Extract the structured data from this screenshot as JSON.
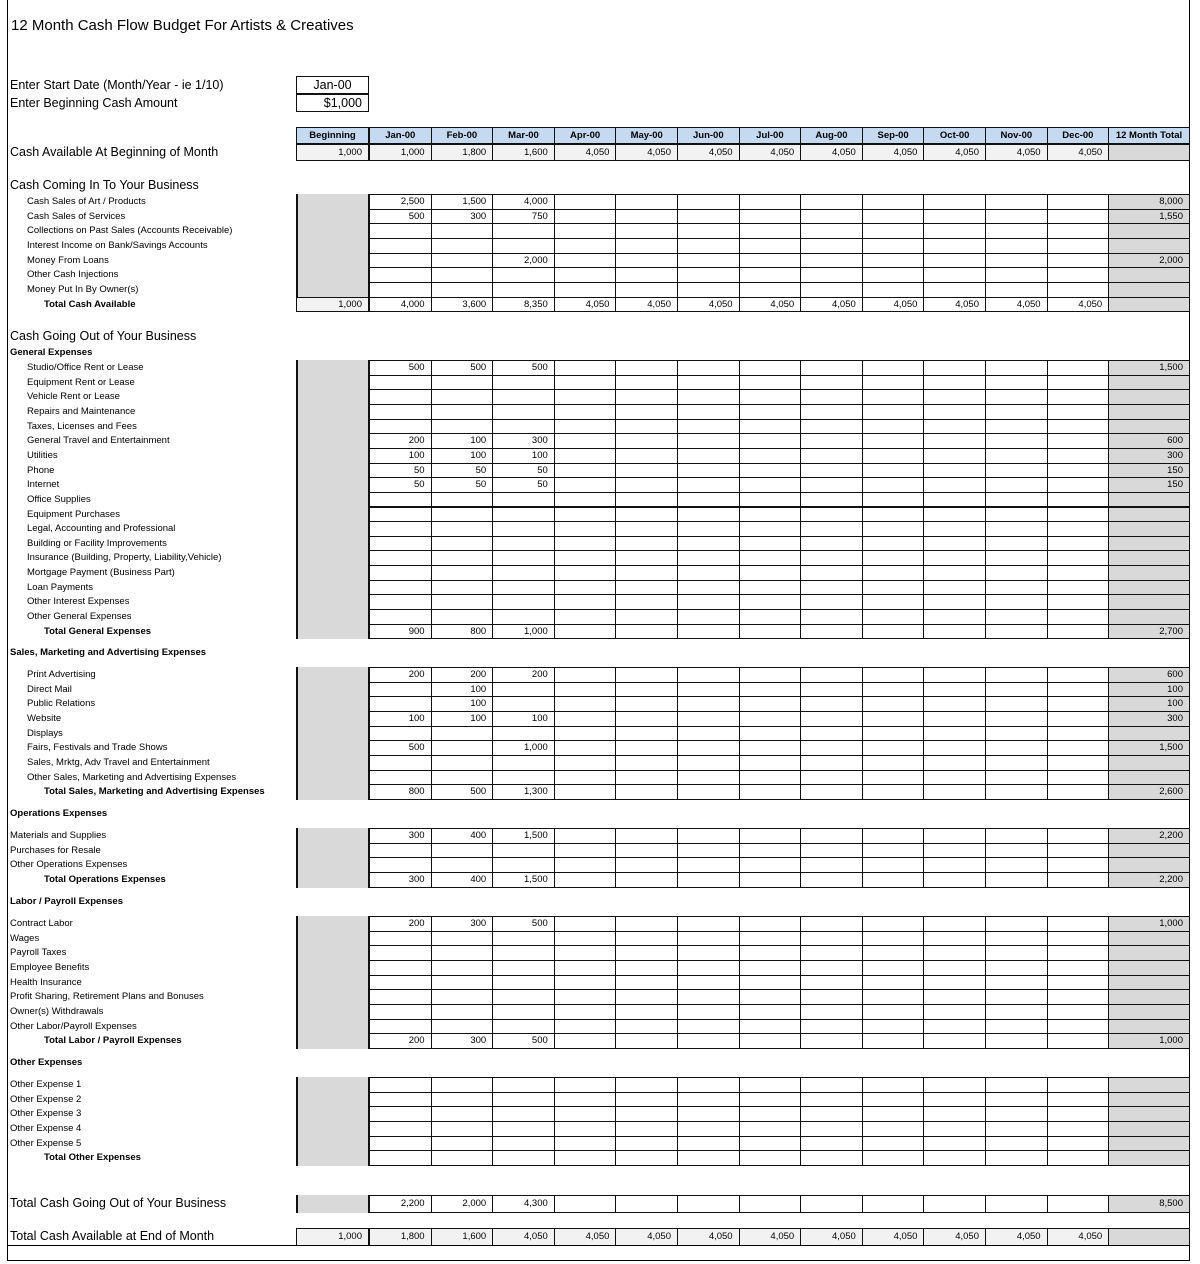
{
  "title": "12 Month Cash Flow Budget For Artists & Creatives",
  "inputs": {
    "start_date_label": "Enter Start Date (Month/Year - ie 1/10)",
    "start_date_value": "Jan-00",
    "beginning_cash_label": "Enter Beginning Cash Amount",
    "beginning_cash_value": "$1,000"
  },
  "columns": {
    "beginning": "Beginning",
    "months": [
      "Jan-00",
      "Feb-00",
      "Mar-00",
      "Apr-00",
      "May-00",
      "Jun-00",
      "Jul-00",
      "Aug-00",
      "Sep-00",
      "Oct-00",
      "Nov-00",
      "Dec-00"
    ],
    "total": "12 Month Total"
  },
  "cash_beginning": {
    "label": "Cash Available At Beginning of Month",
    "beginning": "1,000",
    "months": [
      "1,000",
      "1,800",
      "1,600",
      "4,050",
      "4,050",
      "4,050",
      "4,050",
      "4,050",
      "4,050",
      "4,050",
      "4,050",
      "4,050"
    ],
    "total": ""
  },
  "income": {
    "title": "Cash Coming In To Your Business",
    "rows": [
      {
        "label": "Cash Sales of Art / Products",
        "months": [
          "2,500",
          "1,500",
          "4,000",
          "",
          "",
          "",
          "",
          "",
          "",
          "",
          "",
          ""
        ],
        "total": "8,000"
      },
      {
        "label": "Cash Sales of Services",
        "months": [
          "500",
          "300",
          "750",
          "",
          "",
          "",
          "",
          "",
          "",
          "",
          "",
          ""
        ],
        "total": "1,550"
      },
      {
        "label": "Collections on Past Sales (Accounts Receivable)",
        "months": [
          "",
          "",
          "",
          "",
          "",
          "",
          "",
          "",
          "",
          "",
          "",
          ""
        ],
        "total": ""
      },
      {
        "label": "Interest Income on Bank/Savings Accounts",
        "months": [
          "",
          "",
          "",
          "",
          "",
          "",
          "",
          "",
          "",
          "",
          "",
          ""
        ],
        "total": ""
      },
      {
        "label": "Money From Loans",
        "months": [
          "",
          "",
          "2,000",
          "",
          "",
          "",
          "",
          "",
          "",
          "",
          "",
          ""
        ],
        "total": "2,000"
      },
      {
        "label": "Other Cash Injections",
        "months": [
          "",
          "",
          "",
          "",
          "",
          "",
          "",
          "",
          "",
          "",
          "",
          ""
        ],
        "total": ""
      },
      {
        "label": "Money Put In By Owner(s)",
        "months": [
          "",
          "",
          "",
          "",
          "",
          "",
          "",
          "",
          "",
          "",
          "",
          ""
        ],
        "total": ""
      }
    ],
    "total_row": {
      "label": "Total Cash Available",
      "beginning": "1,000",
      "months": [
        "4,000",
        "3,600",
        "8,350",
        "4,050",
        "4,050",
        "4,050",
        "4,050",
        "4,050",
        "4,050",
        "4,050",
        "4,050",
        "4,050"
      ],
      "total": ""
    }
  },
  "expenses_title": "Cash Going Out of Your Business",
  "expense_sections": [
    {
      "title": "General Expenses",
      "rows": [
        {
          "label": "Studio/Office Rent or Lease",
          "months": [
            "500",
            "500",
            "500",
            "",
            "",
            "",
            "",
            "",
            "",
            "",
            "",
            ""
          ],
          "total": "1,500"
        },
        {
          "label": "Equipment Rent or Lease",
          "months": [
            "",
            "",
            "",
            "",
            "",
            "",
            "",
            "",
            "",
            "",
            "",
            ""
          ],
          "total": ""
        },
        {
          "label": "Vehicle Rent or Lease",
          "months": [
            "",
            "",
            "",
            "",
            "",
            "",
            "",
            "",
            "",
            "",
            "",
            ""
          ],
          "total": ""
        },
        {
          "label": "Repairs and Maintenance",
          "months": [
            "",
            "",
            "",
            "",
            "",
            "",
            "",
            "",
            "",
            "",
            "",
            ""
          ],
          "total": ""
        },
        {
          "label": "Taxes, Licenses and Fees",
          "months": [
            "",
            "",
            "",
            "",
            "",
            "",
            "",
            "",
            "",
            "",
            "",
            ""
          ],
          "total": ""
        },
        {
          "label": "General Travel and Entertainment",
          "months": [
            "200",
            "100",
            "300",
            "",
            "",
            "",
            "",
            "",
            "",
            "",
            "",
            ""
          ],
          "total": "600"
        },
        {
          "label": "Utilities",
          "months": [
            "100",
            "100",
            "100",
            "",
            "",
            "",
            "",
            "",
            "",
            "",
            "",
            ""
          ],
          "total": "300"
        },
        {
          "label": "Phone",
          "months": [
            "50",
            "50",
            "50",
            "",
            "",
            "",
            "",
            "",
            "",
            "",
            "",
            ""
          ],
          "total": "150"
        },
        {
          "label": "Internet",
          "months": [
            "50",
            "50",
            "50",
            "",
            "",
            "",
            "",
            "",
            "",
            "",
            "",
            ""
          ],
          "total": "150"
        },
        {
          "label": "Office Supplies",
          "months": [
            "",
            "",
            "",
            "",
            "",
            "",
            "",
            "",
            "",
            "",
            "",
            ""
          ],
          "total": ""
        },
        {
          "label": "Equipment Purchases",
          "months": [
            "",
            "",
            "",
            "",
            "",
            "",
            "",
            "",
            "",
            "",
            "",
            ""
          ],
          "total": ""
        },
        {
          "label": "Legal, Accounting and Professional",
          "months": [
            "",
            "",
            "",
            "",
            "",
            "",
            "",
            "",
            "",
            "",
            "",
            ""
          ],
          "total": ""
        },
        {
          "label": "Building or Facility Improvements",
          "months": [
            "",
            "",
            "",
            "",
            "",
            "",
            "",
            "",
            "",
            "",
            "",
            ""
          ],
          "total": ""
        },
        {
          "label": "Insurance (Building, Property, Liability,Vehicle)",
          "months": [
            "",
            "",
            "",
            "",
            "",
            "",
            "",
            "",
            "",
            "",
            "",
            ""
          ],
          "total": ""
        },
        {
          "label": "Mortgage Payment (Business Part)",
          "months": [
            "",
            "",
            "",
            "",
            "",
            "",
            "",
            "",
            "",
            "",
            "",
            ""
          ],
          "total": ""
        },
        {
          "label": "Loan Payments",
          "months": [
            "",
            "",
            "",
            "",
            "",
            "",
            "",
            "",
            "",
            "",
            "",
            ""
          ],
          "total": ""
        },
        {
          "label": "Other Interest Expenses",
          "months": [
            "",
            "",
            "",
            "",
            "",
            "",
            "",
            "",
            "",
            "",
            "",
            ""
          ],
          "total": ""
        },
        {
          "label": "Other General Expenses",
          "months": [
            "",
            "",
            "",
            "",
            "",
            "",
            "",
            "",
            "",
            "",
            "",
            ""
          ],
          "total": ""
        }
      ],
      "total_row": {
        "label": "Total General Expenses",
        "months": [
          "900",
          "800",
          "1,000",
          "",
          "",
          "",
          "",
          "",
          "",
          "",
          "",
          ""
        ],
        "total": "2,700"
      }
    },
    {
      "title": "Sales, Marketing and Advertising Expenses",
      "rows": [
        {
          "label": "Print Advertising",
          "months": [
            "200",
            "200",
            "200",
            "",
            "",
            "",
            "",
            "",
            "",
            "",
            "",
            ""
          ],
          "total": "600"
        },
        {
          "label": "Direct Mail",
          "months": [
            "",
            "100",
            "",
            "",
            "",
            "",
            "",
            "",
            "",
            "",
            "",
            ""
          ],
          "total": "100"
        },
        {
          "label": "Public Relations",
          "months": [
            "",
            "100",
            "",
            "",
            "",
            "",
            "",
            "",
            "",
            "",
            "",
            ""
          ],
          "total": "100"
        },
        {
          "label": "Website",
          "months": [
            "100",
            "100",
            "100",
            "",
            "",
            "",
            "",
            "",
            "",
            "",
            "",
            ""
          ],
          "total": "300"
        },
        {
          "label": "Displays",
          "months": [
            "",
            "",
            "",
            "",
            "",
            "",
            "",
            "",
            "",
            "",
            "",
            ""
          ],
          "total": ""
        },
        {
          "label": "Fairs, Festivals and Trade Shows",
          "months": [
            "500",
            "",
            "1,000",
            "",
            "",
            "",
            "",
            "",
            "",
            "",
            "",
            ""
          ],
          "total": "1,500"
        },
        {
          "label": "Sales, Mrktg, Adv Travel and Entertainment",
          "months": [
            "",
            "",
            "",
            "",
            "",
            "",
            "",
            "",
            "",
            "",
            "",
            ""
          ],
          "total": ""
        },
        {
          "label": "Other Sales, Marketing and Advertising Expenses",
          "months": [
            "",
            "",
            "",
            "",
            "",
            "",
            "",
            "",
            "",
            "",
            "",
            ""
          ],
          "total": ""
        }
      ],
      "total_row": {
        "label": "Total Sales, Marketing and Advertising Expenses",
        "months": [
          "800",
          "500",
          "1,300",
          "",
          "",
          "",
          "",
          "",
          "",
          "",
          "",
          ""
        ],
        "total": "2,600"
      }
    },
    {
      "title": "Operations Expenses",
      "rows": [
        {
          "label": "Materials and Supplies",
          "months": [
            "300",
            "400",
            "1,500",
            "",
            "",
            "",
            "",
            "",
            "",
            "",
            "",
            ""
          ],
          "total": "2,200"
        },
        {
          "label": "Purchases for Resale",
          "months": [
            "",
            "",
            "",
            "",
            "",
            "",
            "",
            "",
            "",
            "",
            "",
            ""
          ],
          "total": ""
        },
        {
          "label": "Other Operations Expenses",
          "months": [
            "",
            "",
            "",
            "",
            "",
            "",
            "",
            "",
            "",
            "",
            "",
            ""
          ],
          "total": ""
        }
      ],
      "total_row": {
        "label": "Total Operations Expenses",
        "months": [
          "300",
          "400",
          "1,500",
          "",
          "",
          "",
          "",
          "",
          "",
          "",
          "",
          ""
        ],
        "total": "2,200"
      }
    },
    {
      "title": "Labor / Payroll Expenses",
      "rows": [
        {
          "label": "Contract Labor",
          "months": [
            "200",
            "300",
            "500",
            "",
            "",
            "",
            "",
            "",
            "",
            "",
            "",
            ""
          ],
          "total": "1,000"
        },
        {
          "label": "Wages",
          "months": [
            "",
            "",
            "",
            "",
            "",
            "",
            "",
            "",
            "",
            "",
            "",
            ""
          ],
          "total": ""
        },
        {
          "label": "Payroll Taxes",
          "months": [
            "",
            "",
            "",
            "",
            "",
            "",
            "",
            "",
            "",
            "",
            "",
            ""
          ],
          "total": ""
        },
        {
          "label": "Employee Benefits",
          "months": [
            "",
            "",
            "",
            "",
            "",
            "",
            "",
            "",
            "",
            "",
            "",
            ""
          ],
          "total": ""
        },
        {
          "label": "Health Insurance",
          "months": [
            "",
            "",
            "",
            "",
            "",
            "",
            "",
            "",
            "",
            "",
            "",
            ""
          ],
          "total": ""
        },
        {
          "label": "Profit Sharing, Retirement Plans and Bonuses",
          "months": [
            "",
            "",
            "",
            "",
            "",
            "",
            "",
            "",
            "",
            "",
            "",
            ""
          ],
          "total": ""
        },
        {
          "label": "Owner(s) Withdrawals",
          "months": [
            "",
            "",
            "",
            "",
            "",
            "",
            "",
            "",
            "",
            "",
            "",
            ""
          ],
          "total": ""
        },
        {
          "label": "Other Labor/Payroll Expenses",
          "months": [
            "",
            "",
            "",
            "",
            "",
            "",
            "",
            "",
            "",
            "",
            "",
            ""
          ],
          "total": ""
        }
      ],
      "total_row": {
        "label": "Total Labor / Payroll Expenses",
        "months": [
          "200",
          "300",
          "500",
          "",
          "",
          "",
          "",
          "",
          "",
          "",
          "",
          ""
        ],
        "total": "1,000"
      }
    },
    {
      "title": "Other Expenses",
      "rows": [
        {
          "label": "Other Expense 1",
          "months": [
            "",
            "",
            "",
            "",
            "",
            "",
            "",
            "",
            "",
            "",
            "",
            ""
          ],
          "total": ""
        },
        {
          "label": "Other Expense 2",
          "months": [
            "",
            "",
            "",
            "",
            "",
            "",
            "",
            "",
            "",
            "",
            "",
            ""
          ],
          "total": ""
        },
        {
          "label": "Other Expense 3",
          "months": [
            "",
            "",
            "",
            "",
            "",
            "",
            "",
            "",
            "",
            "",
            "",
            ""
          ],
          "total": ""
        },
        {
          "label": "Other Expense 4",
          "months": [
            "",
            "",
            "",
            "",
            "",
            "",
            "",
            "",
            "",
            "",
            "",
            ""
          ],
          "total": ""
        },
        {
          "label": "Other Expense 5",
          "months": [
            "",
            "",
            "",
            "",
            "",
            "",
            "",
            "",
            "",
            "",
            "",
            ""
          ],
          "total": ""
        }
      ],
      "total_row": {
        "label": "Total Other Expenses",
        "months": [
          "",
          "",
          "",
          "",
          "",
          "",
          "",
          "",
          "",
          "",
          "",
          ""
        ],
        "total": ""
      }
    }
  ],
  "total_going_out": {
    "label": "Total Cash Going Out of Your Business",
    "months": [
      "2,200",
      "2,000",
      "4,300",
      "",
      "",
      "",
      "",
      "",
      "",
      "",
      "",
      ""
    ],
    "total": "8,500"
  },
  "cash_end": {
    "label": "Total Cash Available at End of Month",
    "beginning": "1,000",
    "months": [
      "1,800",
      "1,600",
      "4,050",
      "4,050",
      "4,050",
      "4,050",
      "4,050",
      "4,050",
      "4,050",
      "4,050",
      "4,050",
      "4,050"
    ],
    "total": ""
  },
  "colors": {
    "header_fill": "#c5d9f1",
    "formula_fill": "#d9d9d9",
    "computed_fill": "#f2f2f2"
  }
}
